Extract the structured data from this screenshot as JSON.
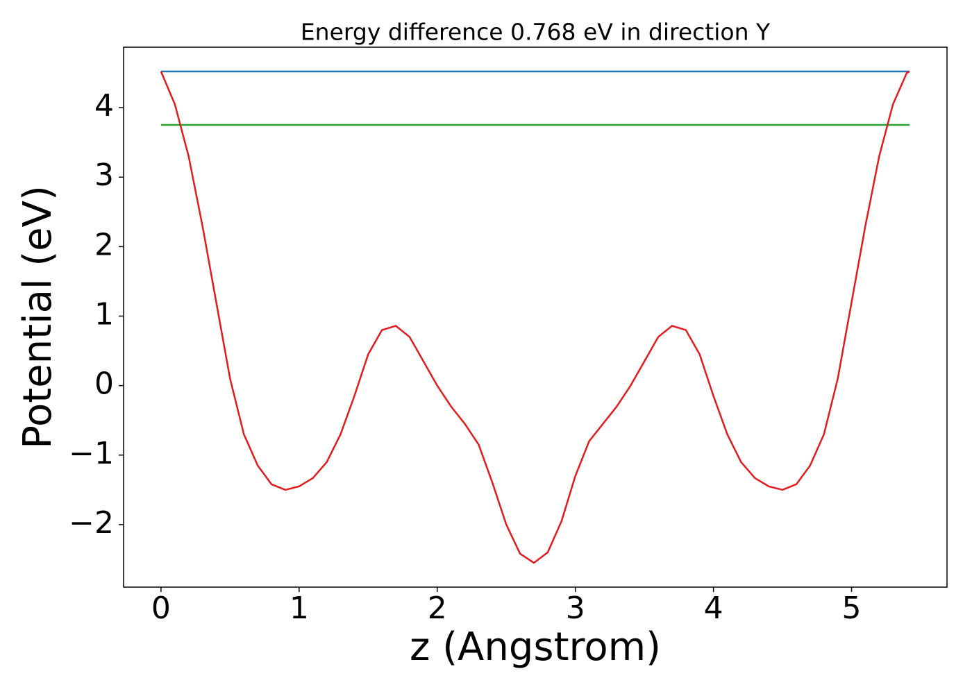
{
  "chart_data": {
    "type": "line",
    "title": "Energy difference 0.768 eV in direction Y",
    "x_label": "z (Angstrom)",
    "y_label": "Potential (eV)",
    "xlim": [
      -0.271,
      5.691
    ],
    "ylim": [
      -2.9,
      4.87
    ],
    "xticks": [
      0,
      1,
      2,
      3,
      4,
      5
    ],
    "yticks": [
      {
        "value": -2,
        "label": "−2"
      },
      {
        "value": -1,
        "label": "−1"
      },
      0,
      1,
      2,
      3,
      4
    ],
    "grid": false,
    "series": [
      {
        "color": "#1f77b4",
        "x": [
          0,
          5.42
        ],
        "values": [
          4.52,
          4.52
        ]
      },
      {
        "color": "#2ca02c",
        "x": [
          0,
          5.42
        ],
        "values": [
          3.752,
          3.752
        ]
      },
      {
        "color": "#e41a1c",
        "x": [
          0,
          0.1,
          0.2,
          0.3,
          0.4,
          0.5,
          0.6,
          0.7,
          0.8,
          0.9,
          1.0,
          1.1,
          1.2,
          1.3,
          1.4,
          1.5,
          1.6,
          1.7,
          1.8,
          1.9,
          2.0,
          2.1,
          2.2,
          2.3,
          2.4,
          2.5,
          2.6,
          2.7,
          2.8,
          2.9,
          3.0,
          3.1,
          3.2,
          3.3,
          3.4,
          3.5,
          3.6,
          3.7,
          3.8,
          3.9,
          4.0,
          4.1,
          4.2,
          4.3,
          4.4,
          4.5,
          4.6,
          4.7,
          4.8,
          4.9,
          5.0,
          5.1,
          5.2,
          5.3,
          5.4,
          5.42
        ],
        "values": [
          4.52,
          4.05,
          3.3,
          2.3,
          1.2,
          0.1,
          -0.7,
          -1.15,
          -1.42,
          -1.5,
          -1.45,
          -1.33,
          -1.1,
          -0.7,
          -0.15,
          0.45,
          0.8,
          0.86,
          0.7,
          0.35,
          0.0,
          -0.3,
          -0.55,
          -0.85,
          -1.4,
          -2.0,
          -2.42,
          -2.55,
          -2.4,
          -1.95,
          -1.3,
          -0.8,
          -0.55,
          -0.3,
          0.0,
          0.35,
          0.7,
          0.86,
          0.8,
          0.45,
          -0.15,
          -0.7,
          -1.1,
          -1.33,
          -1.45,
          -1.5,
          -1.42,
          -1.15,
          -0.7,
          0.1,
          1.2,
          2.3,
          3.3,
          4.05,
          4.5,
          4.52
        ]
      }
    ]
  }
}
